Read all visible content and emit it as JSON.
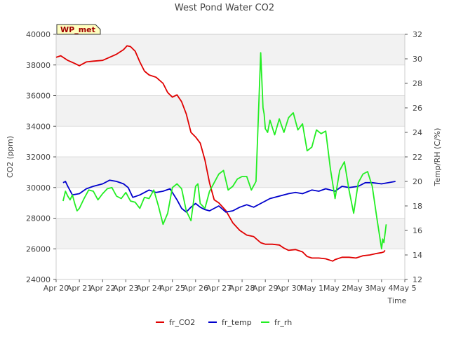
{
  "chart_data": {
    "type": "line",
    "title": "West Pond Water CO2",
    "xlabel": "Time",
    "ylabel_left": "CO2 (ppm)",
    "ylabel_right": "Temp/RH (C/%)",
    "badge": "WP_met",
    "xlim": [
      0,
      15
    ],
    "x_ticks": [
      {
        "x": 0,
        "label": "Apr 20"
      },
      {
        "x": 1,
        "label": "Apr 21"
      },
      {
        "x": 2,
        "label": "Apr 22"
      },
      {
        "x": 3,
        "label": "Apr 23"
      },
      {
        "x": 4,
        "label": "Apr 24"
      },
      {
        "x": 5,
        "label": "Apr 25"
      },
      {
        "x": 6,
        "label": "Apr 26"
      },
      {
        "x": 7,
        "label": "Apr 27"
      },
      {
        "x": 8,
        "label": "Apr 28"
      },
      {
        "x": 9,
        "label": "Apr 29"
      },
      {
        "x": 10,
        "label": "Apr 30"
      },
      {
        "x": 11,
        "label": "May 1"
      },
      {
        "x": 12,
        "label": "May 2"
      },
      {
        "x": 13,
        "label": "May 3"
      },
      {
        "x": 14,
        "label": "May 4"
      },
      {
        "x": 15,
        "label": "May 5"
      }
    ],
    "ylim_left": [
      24000,
      40000
    ],
    "yticks_left": [
      24000,
      26000,
      28000,
      30000,
      32000,
      34000,
      36000,
      38000,
      40000
    ],
    "ylim_right": [
      12,
      32
    ],
    "yticks_right": [
      12,
      14,
      16,
      18,
      20,
      22,
      24,
      26,
      28,
      30,
      32
    ],
    "grid": "horizontal bands",
    "legend_position": "bottom",
    "series": [
      {
        "name": "fr_CO2",
        "axis": "left",
        "color": "#e00000",
        "x": [
          0.0,
          0.2,
          0.5,
          0.8,
          1.0,
          1.3,
          1.6,
          2.0,
          2.3,
          2.6,
          2.9,
          3.05,
          3.2,
          3.4,
          3.6,
          3.8,
          4.0,
          4.3,
          4.6,
          4.8,
          5.0,
          5.2,
          5.4,
          5.6,
          5.8,
          6.0,
          6.2,
          6.4,
          6.6,
          6.8,
          7.0,
          7.3,
          7.6,
          7.9,
          8.2,
          8.5,
          8.8,
          9.0,
          9.3,
          9.6,
          9.8,
          10.0,
          10.3,
          10.6,
          10.8,
          11.0,
          11.3,
          11.6,
          11.9,
          12.0,
          12.3,
          12.6,
          12.9,
          13.2,
          13.5,
          13.8,
          14.0,
          14.1,
          14.15
        ],
        "y": [
          38500,
          38600,
          38300,
          38100,
          37950,
          38200,
          38250,
          38300,
          38500,
          38700,
          39000,
          39250,
          39200,
          38900,
          38200,
          37600,
          37350,
          37200,
          36800,
          36200,
          35900,
          36050,
          35600,
          34800,
          33600,
          33300,
          32900,
          31800,
          30300,
          29200,
          29000,
          28500,
          27700,
          27200,
          26900,
          26800,
          26400,
          26300,
          26300,
          26250,
          26050,
          25900,
          25950,
          25800,
          25500,
          25400,
          25400,
          25350,
          25200,
          25300,
          25450,
          25450,
          25400,
          25550,
          25600,
          25700,
          25750,
          25800,
          25900
        ]
      },
      {
        "name": "fr_temp",
        "axis": "right",
        "color": "#0000cc",
        "x": [
          0.3,
          0.4,
          0.5,
          0.7,
          1.0,
          1.3,
          1.6,
          2.0,
          2.3,
          2.6,
          2.9,
          3.1,
          3.3,
          3.6,
          4.0,
          4.3,
          4.6,
          4.9,
          5.2,
          5.4,
          5.6,
          5.8,
          6.0,
          6.2,
          6.4,
          6.6,
          6.8,
          7.0,
          7.3,
          7.6,
          7.9,
          8.2,
          8.5,
          8.8,
          9.2,
          9.6,
          10.0,
          10.3,
          10.6,
          11.0,
          11.3,
          11.6,
          12.0,
          12.3,
          12.6,
          13.0,
          13.3,
          13.6,
          14.0,
          14.3,
          14.6
        ],
        "y": [
          19.9,
          20.0,
          19.6,
          18.9,
          19.0,
          19.4,
          19.6,
          19.8,
          20.1,
          20.0,
          19.8,
          19.5,
          18.7,
          18.9,
          19.3,
          19.1,
          19.2,
          19.4,
          18.5,
          17.8,
          17.5,
          17.9,
          18.2,
          17.9,
          17.7,
          17.6,
          17.8,
          18.0,
          17.5,
          17.6,
          17.9,
          18.1,
          17.9,
          18.2,
          18.6,
          18.8,
          19.0,
          19.1,
          19.0,
          19.3,
          19.2,
          19.4,
          19.2,
          19.6,
          19.5,
          19.6,
          19.9,
          19.9,
          19.8,
          19.9,
          20.0
        ]
      },
      {
        "name": "fr_rh",
        "axis": "right",
        "color": "#22ee22",
        "x": [
          0.3,
          0.4,
          0.5,
          0.6,
          0.7,
          0.8,
          0.9,
          1.0,
          1.2,
          1.4,
          1.6,
          1.8,
          2.0,
          2.2,
          2.4,
          2.6,
          2.8,
          3.0,
          3.2,
          3.4,
          3.6,
          3.8,
          4.0,
          4.2,
          4.4,
          4.6,
          4.8,
          5.0,
          5.2,
          5.4,
          5.6,
          5.8,
          6.0,
          6.1,
          6.2,
          6.4,
          6.6,
          6.8,
          7.0,
          7.2,
          7.4,
          7.6,
          7.8,
          8.0,
          8.2,
          8.4,
          8.6,
          8.8,
          8.9,
          8.95,
          9.0,
          9.1,
          9.2,
          9.4,
          9.6,
          9.8,
          10.0,
          10.2,
          10.4,
          10.6,
          10.8,
          11.0,
          11.2,
          11.4,
          11.6,
          11.8,
          12.0,
          12.2,
          12.4,
          12.6,
          12.8,
          13.0,
          13.2,
          13.4,
          13.6,
          13.8,
          14.0,
          14.05,
          14.1,
          14.2
        ],
        "y": [
          18.4,
          19.2,
          18.8,
          18.5,
          18.9,
          18.2,
          17.6,
          17.8,
          18.6,
          19.3,
          19.2,
          18.5,
          19.0,
          19.4,
          19.5,
          18.8,
          18.6,
          19.1,
          18.4,
          18.3,
          17.8,
          18.7,
          18.6,
          19.3,
          18.0,
          16.5,
          17.4,
          19.5,
          19.8,
          19.4,
          17.6,
          16.8,
          19.6,
          19.8,
          18.2,
          17.8,
          19.2,
          19.9,
          20.6,
          20.9,
          19.3,
          19.6,
          20.2,
          20.4,
          20.4,
          19.3,
          20.0,
          30.5,
          26.0,
          25.5,
          24.3,
          24.0,
          25.0,
          23.8,
          25.1,
          24.0,
          25.2,
          25.6,
          24.2,
          24.7,
          22.5,
          22.8,
          24.2,
          23.9,
          24.1,
          21.0,
          18.6,
          20.9,
          21.6,
          19.3,
          17.4,
          19.9,
          20.6,
          20.8,
          19.6,
          17.0,
          14.5,
          15.3,
          15.0,
          16.5
        ]
      }
    ]
  }
}
